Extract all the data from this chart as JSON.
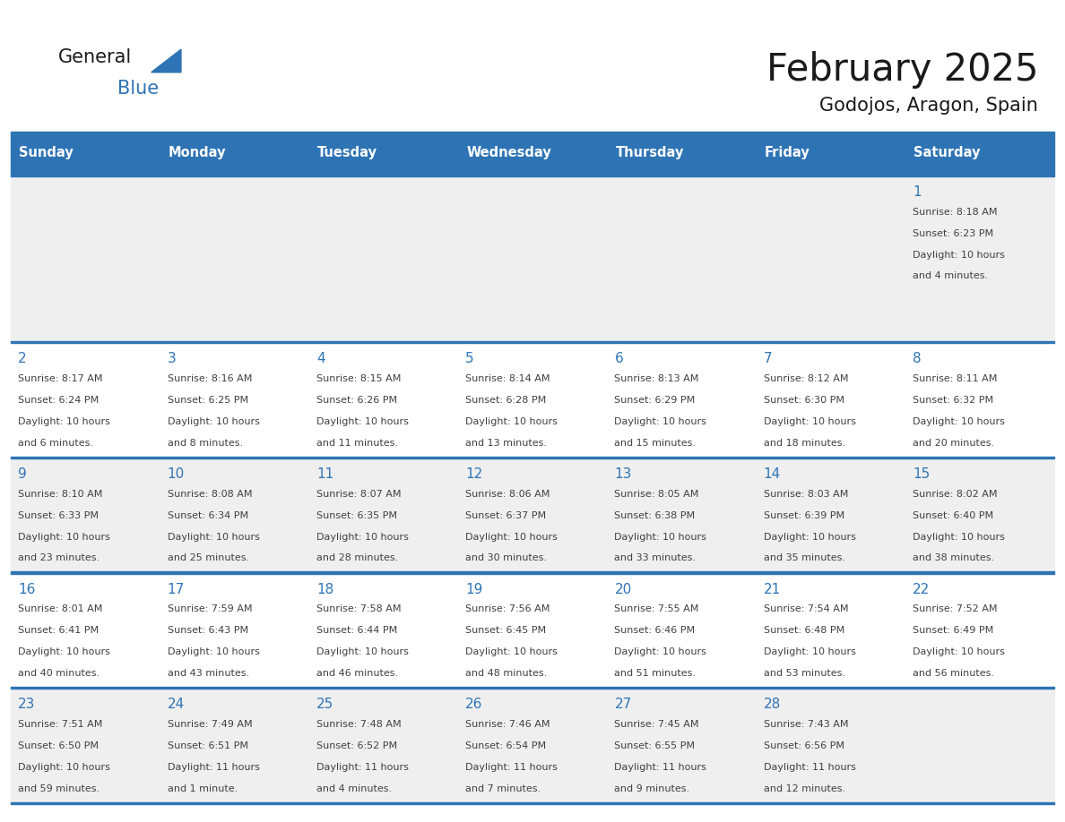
{
  "title": "February 2025",
  "subtitle": "Godojos, Aragon, Spain",
  "days_of_week": [
    "Sunday",
    "Monday",
    "Tuesday",
    "Wednesday",
    "Thursday",
    "Friday",
    "Saturday"
  ],
  "header_bg": "#2E74B5",
  "header_text": "#FFFFFF",
  "row_bg_light": "#EFEFEF",
  "row_bg_white": "#FFFFFF",
  "separator_color": "#2E74B5",
  "day_number_color": "#2E74B5",
  "cell_text_color": "#404040",
  "calendar_data": [
    [
      null,
      null,
      null,
      null,
      null,
      null,
      {
        "day": 1,
        "sunrise": "8:18 AM",
        "sunset": "6:23 PM",
        "daylight_h": "10 hours",
        "daylight_m": "and 4 minutes."
      }
    ],
    [
      {
        "day": 2,
        "sunrise": "8:17 AM",
        "sunset": "6:24 PM",
        "daylight_h": "10 hours",
        "daylight_m": "and 6 minutes."
      },
      {
        "day": 3,
        "sunrise": "8:16 AM",
        "sunset": "6:25 PM",
        "daylight_h": "10 hours",
        "daylight_m": "and 8 minutes."
      },
      {
        "day": 4,
        "sunrise": "8:15 AM",
        "sunset": "6:26 PM",
        "daylight_h": "10 hours",
        "daylight_m": "and 11 minutes."
      },
      {
        "day": 5,
        "sunrise": "8:14 AM",
        "sunset": "6:28 PM",
        "daylight_h": "10 hours",
        "daylight_m": "and 13 minutes."
      },
      {
        "day": 6,
        "sunrise": "8:13 AM",
        "sunset": "6:29 PM",
        "daylight_h": "10 hours",
        "daylight_m": "and 15 minutes."
      },
      {
        "day": 7,
        "sunrise": "8:12 AM",
        "sunset": "6:30 PM",
        "daylight_h": "10 hours",
        "daylight_m": "and 18 minutes."
      },
      {
        "day": 8,
        "sunrise": "8:11 AM",
        "sunset": "6:32 PM",
        "daylight_h": "10 hours",
        "daylight_m": "and 20 minutes."
      }
    ],
    [
      {
        "day": 9,
        "sunrise": "8:10 AM",
        "sunset": "6:33 PM",
        "daylight_h": "10 hours",
        "daylight_m": "and 23 minutes."
      },
      {
        "day": 10,
        "sunrise": "8:08 AM",
        "sunset": "6:34 PM",
        "daylight_h": "10 hours",
        "daylight_m": "and 25 minutes."
      },
      {
        "day": 11,
        "sunrise": "8:07 AM",
        "sunset": "6:35 PM",
        "daylight_h": "10 hours",
        "daylight_m": "and 28 minutes."
      },
      {
        "day": 12,
        "sunrise": "8:06 AM",
        "sunset": "6:37 PM",
        "daylight_h": "10 hours",
        "daylight_m": "and 30 minutes."
      },
      {
        "day": 13,
        "sunrise": "8:05 AM",
        "sunset": "6:38 PM",
        "daylight_h": "10 hours",
        "daylight_m": "and 33 minutes."
      },
      {
        "day": 14,
        "sunrise": "8:03 AM",
        "sunset": "6:39 PM",
        "daylight_h": "10 hours",
        "daylight_m": "and 35 minutes."
      },
      {
        "day": 15,
        "sunrise": "8:02 AM",
        "sunset": "6:40 PM",
        "daylight_h": "10 hours",
        "daylight_m": "and 38 minutes."
      }
    ],
    [
      {
        "day": 16,
        "sunrise": "8:01 AM",
        "sunset": "6:41 PM",
        "daylight_h": "10 hours",
        "daylight_m": "and 40 minutes."
      },
      {
        "day": 17,
        "sunrise": "7:59 AM",
        "sunset": "6:43 PM",
        "daylight_h": "10 hours",
        "daylight_m": "and 43 minutes."
      },
      {
        "day": 18,
        "sunrise": "7:58 AM",
        "sunset": "6:44 PM",
        "daylight_h": "10 hours",
        "daylight_m": "and 46 minutes."
      },
      {
        "day": 19,
        "sunrise": "7:56 AM",
        "sunset": "6:45 PM",
        "daylight_h": "10 hours",
        "daylight_m": "and 48 minutes."
      },
      {
        "day": 20,
        "sunrise": "7:55 AM",
        "sunset": "6:46 PM",
        "daylight_h": "10 hours",
        "daylight_m": "and 51 minutes."
      },
      {
        "day": 21,
        "sunrise": "7:54 AM",
        "sunset": "6:48 PM",
        "daylight_h": "10 hours",
        "daylight_m": "and 53 minutes."
      },
      {
        "day": 22,
        "sunrise": "7:52 AM",
        "sunset": "6:49 PM",
        "daylight_h": "10 hours",
        "daylight_m": "and 56 minutes."
      }
    ],
    [
      {
        "day": 23,
        "sunrise": "7:51 AM",
        "sunset": "6:50 PM",
        "daylight_h": "10 hours",
        "daylight_m": "and 59 minutes."
      },
      {
        "day": 24,
        "sunrise": "7:49 AM",
        "sunset": "6:51 PM",
        "daylight_h": "11 hours",
        "daylight_m": "and 1 minute."
      },
      {
        "day": 25,
        "sunrise": "7:48 AM",
        "sunset": "6:52 PM",
        "daylight_h": "11 hours",
        "daylight_m": "and 4 minutes."
      },
      {
        "day": 26,
        "sunrise": "7:46 AM",
        "sunset": "6:54 PM",
        "daylight_h": "11 hours",
        "daylight_m": "and 7 minutes."
      },
      {
        "day": 27,
        "sunrise": "7:45 AM",
        "sunset": "6:55 PM",
        "daylight_h": "11 hours",
        "daylight_m": "and 9 minutes."
      },
      {
        "day": 28,
        "sunrise": "7:43 AM",
        "sunset": "6:56 PM",
        "daylight_h": "11 hours",
        "daylight_m": "and 12 minutes."
      },
      null
    ]
  ],
  "figsize": [
    11.88,
    9.18
  ],
  "dpi": 100
}
